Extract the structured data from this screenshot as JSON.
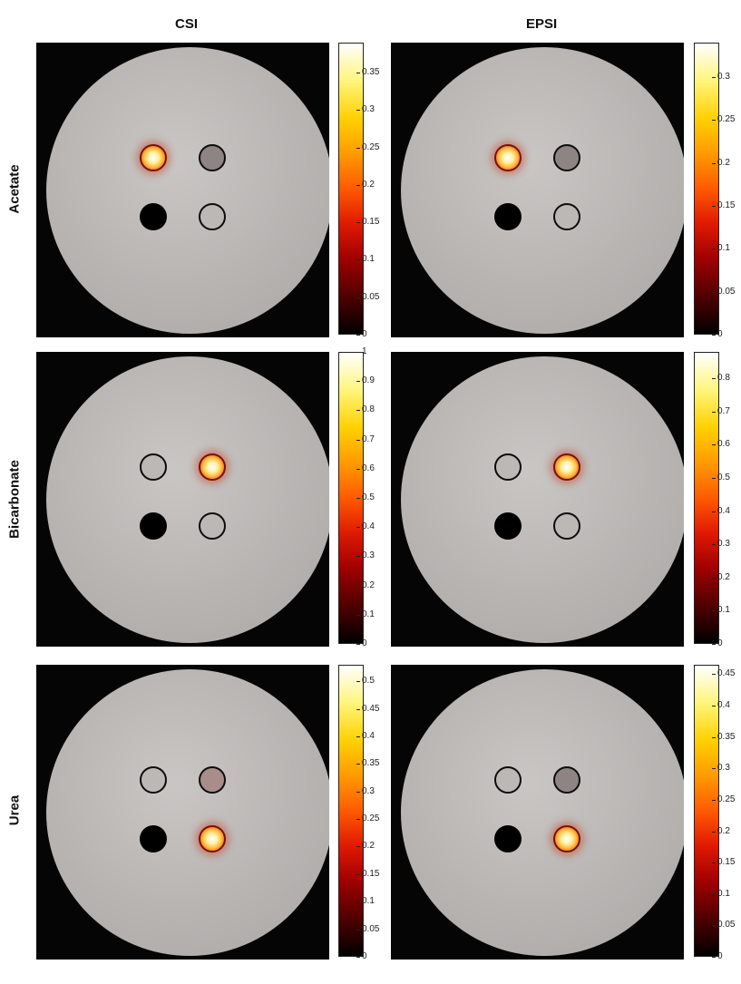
{
  "columns": [
    "CSI",
    "EPSI"
  ],
  "rows": [
    {
      "label": "Acetate",
      "panels": [
        {
          "colorbar_ticks": [
            "0.35",
            "0.3",
            "0.25",
            "0.2",
            "0.15",
            "0.1",
            "0.05",
            "0"
          ]
        },
        {
          "colorbar_ticks": [
            "0.3",
            "0.25",
            "0.2",
            "0.15",
            "0.1",
            "0.05",
            "0"
          ]
        }
      ]
    },
    {
      "label": "Bicarbonate",
      "panels": [
        {
          "colorbar_ticks": [
            "1",
            "0.9",
            "0.8",
            "0.7",
            "0.6",
            "0.5",
            "0.4",
            "0.3",
            "0.2",
            "0.1",
            "0"
          ]
        },
        {
          "colorbar_ticks": [
            "0.8",
            "0.7",
            "0.6",
            "0.5",
            "0.4",
            "0.3",
            "0.2",
            "0.1",
            "0"
          ]
        }
      ]
    },
    {
      "label": "Urea",
      "panels": [
        {
          "colorbar_ticks": [
            "0.5",
            "0.45",
            "0.4",
            "0.35",
            "0.3",
            "0.25",
            "0.2",
            "0.15",
            "0.1",
            "0.05",
            "0"
          ]
        },
        {
          "colorbar_ticks": [
            "0.45",
            "0.4",
            "0.35",
            "0.3",
            "0.25",
            "0.2",
            "0.15",
            "0.1",
            "0.05",
            "0"
          ]
        }
      ]
    }
  ]
}
